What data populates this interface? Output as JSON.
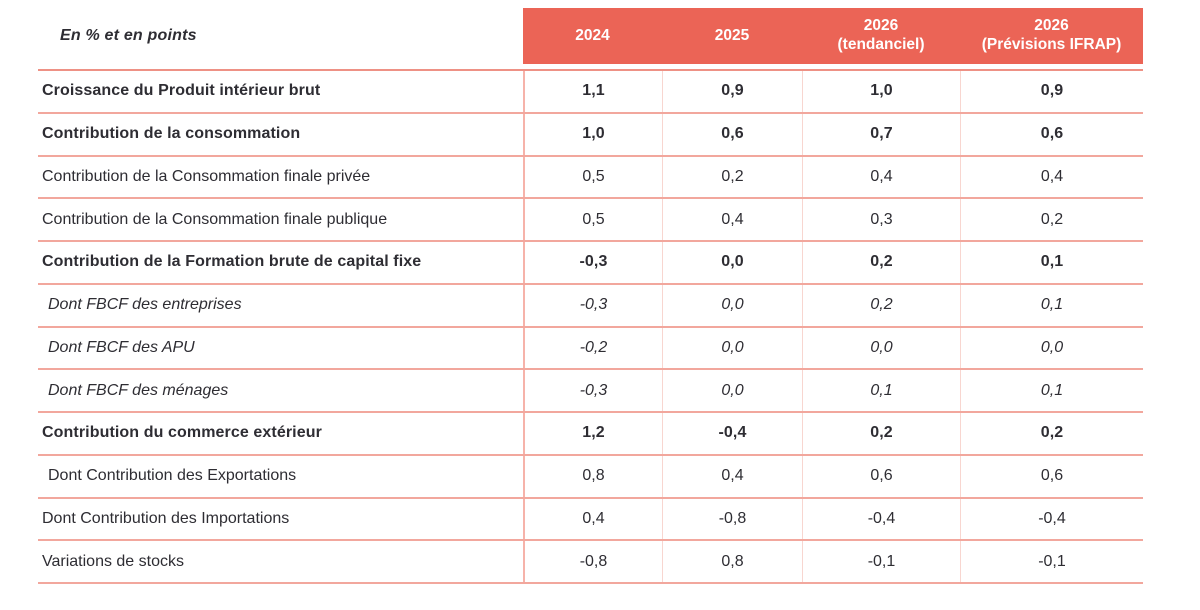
{
  "table": {
    "corner_label": "En % et en points",
    "columns": [
      "2024",
      "2025",
      "2026\n(tendanciel)",
      "2026\n(Prévisions IFRAP)"
    ],
    "rows": [
      {
        "label": "Croissance du Produit intérieur brut",
        "emphasis": "bold",
        "values": [
          "1,1",
          "0,9",
          "1,0",
          "0,9"
        ]
      },
      {
        "label": "Contribution de la consommation",
        "emphasis": "bold",
        "values": [
          "1,0",
          "0,6",
          "0,7",
          "0,6"
        ]
      },
      {
        "label": "Contribution de la Consommation finale privée",
        "emphasis": "regular",
        "values": [
          "0,5",
          "0,2",
          "0,4",
          "0,4"
        ]
      },
      {
        "label": "Contribution de la Consommation finale publique",
        "emphasis": "regular",
        "values": [
          "0,5",
          "0,4",
          "0,3",
          "0,2"
        ]
      },
      {
        "label": "Contribution de la Formation brute de capital fixe",
        "emphasis": "bold",
        "values": [
          "-0,3",
          "0,0",
          "0,2",
          "0,1"
        ]
      },
      {
        "label": "Dont FBCF des entreprises",
        "emphasis": "italic",
        "values": [
          "-0,3",
          "0,0",
          "0,2",
          "0,1"
        ]
      },
      {
        "label": "Dont FBCF des APU",
        "emphasis": "italic",
        "values": [
          "-0,2",
          "0,0",
          "0,0",
          "0,0"
        ]
      },
      {
        "label": "Dont FBCF des ménages",
        "emphasis": "italic",
        "values": [
          "-0,3",
          "0,0",
          "0,1",
          "0,1"
        ]
      },
      {
        "label": "Contribution du commerce extérieur",
        "emphasis": "bold",
        "values": [
          "1,2",
          "-0,4",
          "0,2",
          "0,2"
        ]
      },
      {
        "label": "Dont Contribution des Exportations",
        "emphasis": "regular",
        "values": [
          "0,8",
          "0,4",
          "0,6",
          "0,6"
        ]
      },
      {
        "label": "Dont Contribution des Importations",
        "emphasis": "regular",
        "values": [
          "0,4",
          "-0,8",
          "-0,4",
          "-0,4"
        ]
      },
      {
        "label": "Variations de stocks",
        "emphasis": "regular",
        "values": [
          "-0,8",
          "0,8",
          "-0,1",
          "-0,1"
        ]
      }
    ],
    "colors": {
      "header_background": "#eb6456",
      "header_text": "#ffffff",
      "row_separator": "#f2a79d",
      "header_separator": "#ee9185",
      "column_separator": "#f8d6d0",
      "body_text": "#2e2d33"
    }
  },
  "chart_data": {
    "type": "table",
    "title": "En % et en points",
    "categories": [
      "2024",
      "2025",
      "2026 (tendanciel)",
      "2026 (Prévisions IFRAP)"
    ],
    "series": [
      {
        "name": "Croissance du Produit intérieur brut",
        "values": [
          1.1,
          0.9,
          1.0,
          0.9
        ]
      },
      {
        "name": "Contribution de la consommation",
        "values": [
          1.0,
          0.6,
          0.7,
          0.6
        ]
      },
      {
        "name": "Contribution de la Consommation finale privée",
        "values": [
          0.5,
          0.2,
          0.4,
          0.4
        ]
      },
      {
        "name": "Contribution de la Consommation finale publique",
        "values": [
          0.5,
          0.4,
          0.3,
          0.2
        ]
      },
      {
        "name": "Contribution de la Formation brute de capital fixe",
        "values": [
          -0.3,
          0.0,
          0.2,
          0.1
        ]
      },
      {
        "name": "Dont FBCF des entreprises",
        "values": [
          -0.3,
          0.0,
          0.2,
          0.1
        ]
      },
      {
        "name": "Dont FBCF des APU",
        "values": [
          -0.2,
          0.0,
          0.0,
          0.0
        ]
      },
      {
        "name": "Dont FBCF des ménages",
        "values": [
          -0.3,
          0.0,
          0.1,
          0.1
        ]
      },
      {
        "name": "Contribution du commerce extérieur",
        "values": [
          1.2,
          -0.4,
          0.2,
          0.2
        ]
      },
      {
        "name": "Dont Contribution des Exportations",
        "values": [
          0.8,
          0.4,
          0.6,
          0.6
        ]
      },
      {
        "name": "Dont Contribution des Importations",
        "values": [
          0.4,
          -0.8,
          -0.4,
          -0.4
        ]
      },
      {
        "name": "Variations de stocks",
        "values": [
          -0.8,
          0.8,
          -0.1,
          -0.1
        ]
      }
    ]
  }
}
